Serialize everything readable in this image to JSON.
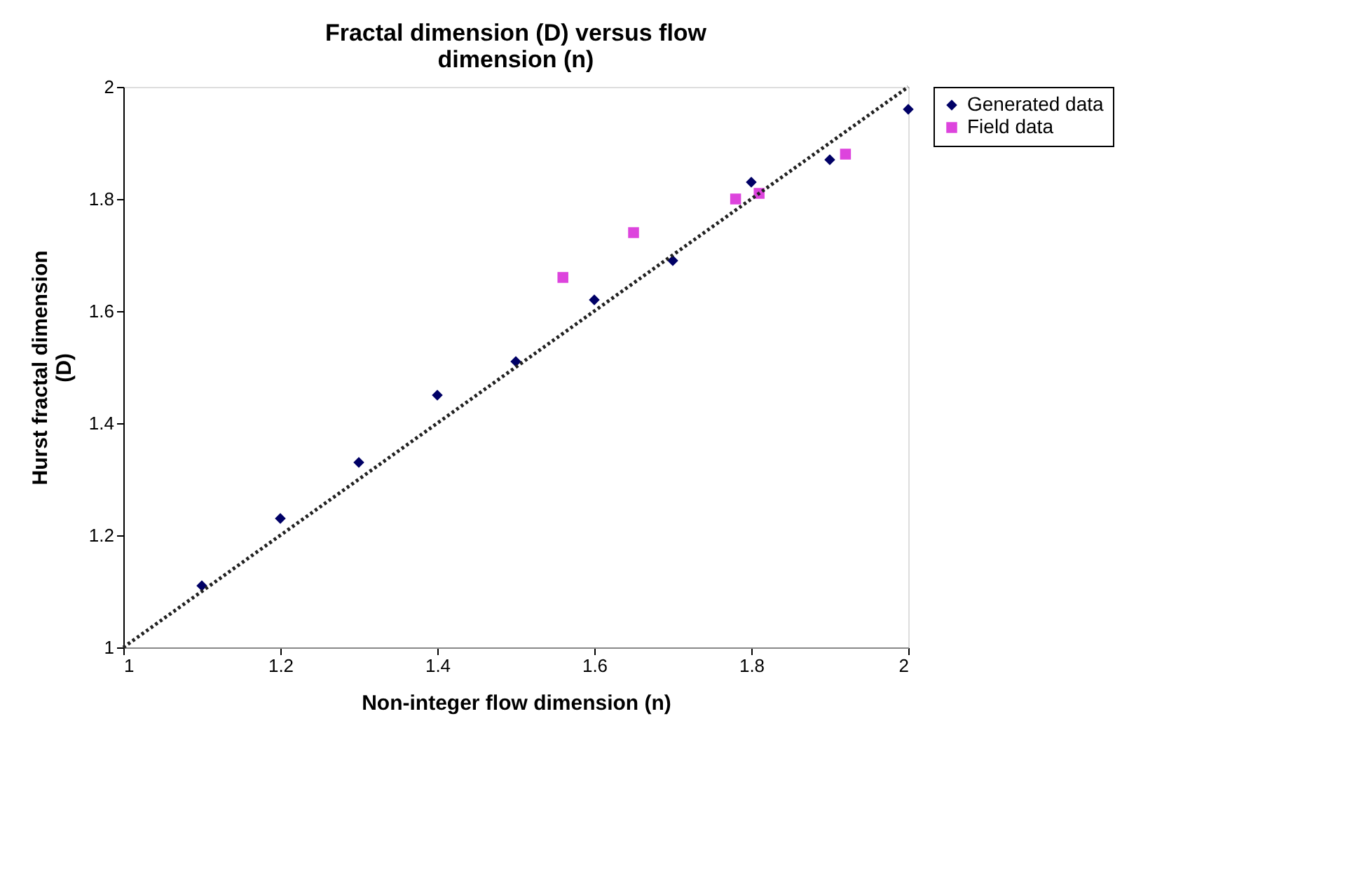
{
  "chart_data": {
    "type": "scatter",
    "title": "Fractal dimension (D) versus flow dimension (n)",
    "xlabel": "Non-integer flow dimension (n)",
    "ylabel": "Hurst fractal dimension (D)",
    "xlim": [
      1,
      2
    ],
    "xticks": [
      1,
      1.2,
      1.4,
      1.6,
      1.8,
      2
    ],
    "ylim": [
      1,
      2
    ],
    "yticks": [
      1,
      1.2,
      1.4,
      1.6,
      1.8,
      2
    ],
    "grid": false,
    "legend": "right",
    "series": [
      {
        "name": "Generated data",
        "color": "#000066",
        "marker": "diamond",
        "x": [
          1.1,
          1.2,
          1.3,
          1.4,
          1.5,
          1.6,
          1.7,
          1.8,
          1.9,
          2.0
        ],
        "values": [
          1.11,
          1.23,
          1.33,
          1.45,
          1.51,
          1.62,
          1.69,
          1.83,
          1.87,
          1.96
        ]
      },
      {
        "name": "Field data",
        "color": "#dd44dd",
        "marker": "square",
        "x": [
          1.56,
          1.65,
          1.78,
          1.81,
          1.92
        ],
        "values": [
          1.66,
          1.74,
          1.8,
          1.81,
          1.88
        ]
      },
      {
        "type": "line",
        "color": "#222222",
        "line_style": "dotted",
        "marker": "none",
        "x": [
          1,
          2
        ],
        "values": [
          1,
          2
        ]
      }
    ]
  }
}
